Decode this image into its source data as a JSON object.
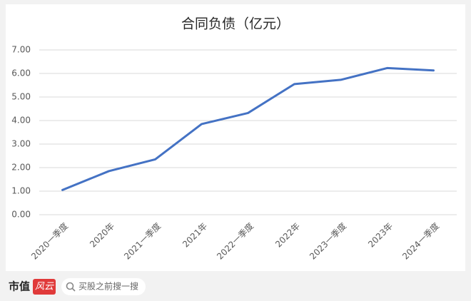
{
  "chart_data": {
    "type": "line",
    "title": "合同负债（亿元）",
    "categories": [
      "2020一季度",
      "2020年",
      "2021一季度",
      "2021年",
      "2022一季度",
      "2022年",
      "2023一季度",
      "2023年",
      "2024一季度"
    ],
    "series": [
      {
        "name": "合同负债",
        "color": "#4472c4",
        "values": [
          1.05,
          1.85,
          2.35,
          3.85,
          4.32,
          5.55,
          5.73,
          6.23,
          6.13
        ]
      }
    ],
    "ylim": [
      0,
      7
    ],
    "yticks": [
      {
        "value": 0,
        "label": "0.00"
      },
      {
        "value": 1,
        "label": "1.00"
      },
      {
        "value": 2,
        "label": "2.00"
      },
      {
        "value": 3,
        "label": "3.00"
      },
      {
        "value": 4,
        "label": "4.00"
      },
      {
        "value": 5,
        "label": "5.00"
      },
      {
        "value": 6,
        "label": "6.00"
      },
      {
        "value": 7,
        "label": "7.00"
      }
    ],
    "grid": true
  },
  "footer": {
    "brand": "市值",
    "badge": "风云",
    "search": "买股之前搜一搜"
  }
}
